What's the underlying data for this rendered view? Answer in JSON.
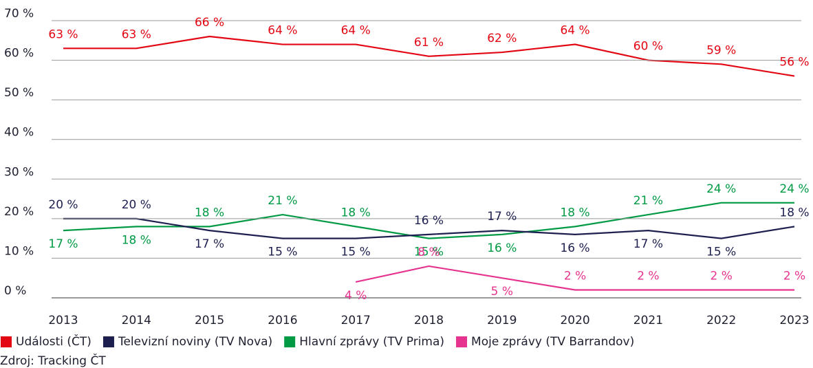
{
  "chart_data": {
    "type": "line",
    "categories": [
      "2013",
      "2014",
      "2015",
      "2016",
      "2017",
      "2018",
      "2019",
      "2020",
      "2021",
      "2022",
      "2023"
    ],
    "series": [
      {
        "name": "Události (ČT)",
        "color": "#e30613",
        "values": [
          63,
          63,
          66,
          64,
          64,
          61,
          62,
          64,
          60,
          59,
          56
        ],
        "value_labels": [
          "63 %",
          "63 %",
          "66 %",
          "64 %",
          "64 %",
          "61 %",
          "62 %",
          "64 %",
          "60 %",
          "59 %",
          "56 %"
        ]
      },
      {
        "name": "Televizní noviny (TV Nova)",
        "color": "#1d1f4f",
        "values": [
          20,
          20,
          17,
          15,
          15,
          16,
          17,
          16,
          17,
          15,
          18
        ],
        "value_labels": [
          "20 %",
          "20 %",
          "17 %",
          "15 %",
          "15 %",
          "16 %",
          "17 %",
          "16 %",
          "17 %",
          "15 %",
          "18 %"
        ]
      },
      {
        "name": "Hlavní zprávy (TV Prima)",
        "color": "#009a44",
        "values": [
          17,
          18,
          18,
          21,
          18,
          15,
          16,
          18,
          21,
          24,
          24
        ],
        "value_labels": [
          "17 %",
          "18 %",
          "18 %",
          "21 %",
          "18 %",
          "15 %",
          "16 %",
          "18 %",
          "21 %",
          "24 %",
          "24 %"
        ]
      },
      {
        "name": "Moje zprávy (TV Barrandov)",
        "color": "#e6338f",
        "values": [
          null,
          null,
          null,
          null,
          4,
          8,
          5,
          2,
          2,
          2,
          2
        ],
        "value_labels": [
          null,
          null,
          null,
          null,
          "4 %",
          "8 %",
          "5 %",
          "2 %",
          "2 %",
          "2 %",
          "2 %"
        ]
      }
    ],
    "ylim": [
      0,
      70
    ],
    "yticks": [
      {
        "value": 0,
        "label": "0 %"
      },
      {
        "value": 10,
        "label": "10 %"
      },
      {
        "value": 20,
        "label": "20 %"
      },
      {
        "value": 30,
        "label": "30 %"
      },
      {
        "value": 40,
        "label": "40 %"
      },
      {
        "value": 50,
        "label": "50 %"
      },
      {
        "value": 60,
        "label": "60 %"
      },
      {
        "value": 70,
        "label": "70 %"
      }
    ],
    "grid": true,
    "source": "Zdroj: Tracking ČT"
  }
}
